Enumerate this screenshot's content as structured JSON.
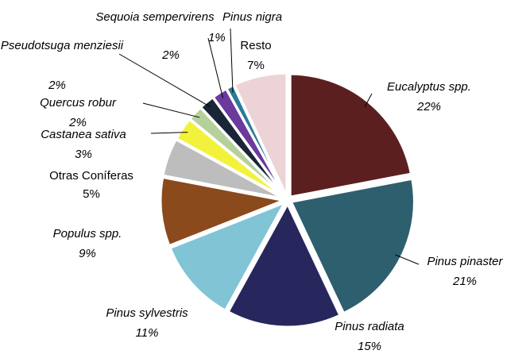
{
  "chart_data": {
    "type": "pie",
    "categories": [
      "Eucalyptus spp.",
      "Pinus pinaster",
      "Pinus radiata",
      "Pinus sylvestris",
      "Populus spp.",
      "Otras Coníferas",
      "Castanea sativa",
      "Quercus robur",
      "Pseudotsuga menziesii",
      "Sequoia sempervirens",
      "Pinus nigra",
      "Resto"
    ],
    "values": [
      22,
      21,
      15,
      11,
      9,
      5,
      3,
      2,
      2,
      2,
      1,
      7
    ],
    "value_labels": [
      "22%",
      "21%",
      "15%",
      "11%",
      "9%",
      "5%",
      "3%",
      "2%",
      "2%",
      "2%",
      "1%",
      "7%"
    ],
    "colors": [
      "#5c1f1f",
      "#2e5f6e",
      "#27275e",
      "#80c4d6",
      "#8b4a1c",
      "#bdbdbd",
      "#f2f23c",
      "#b6d09b",
      "#1b2538",
      "#6a3a9c",
      "#2a7a98",
      "#ecd3d5"
    ]
  }
}
